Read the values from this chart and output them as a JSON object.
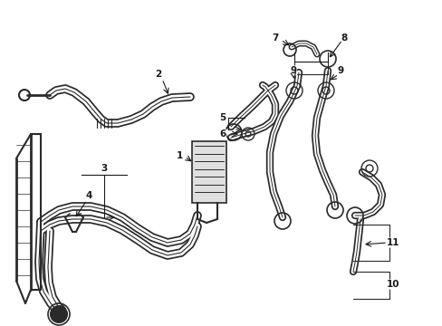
{
  "background_color": "#ffffff",
  "line_color": "#2a2a2a",
  "text_color": "#1a1a1a",
  "fig_width": 4.89,
  "fig_height": 3.6,
  "dpi": 100
}
